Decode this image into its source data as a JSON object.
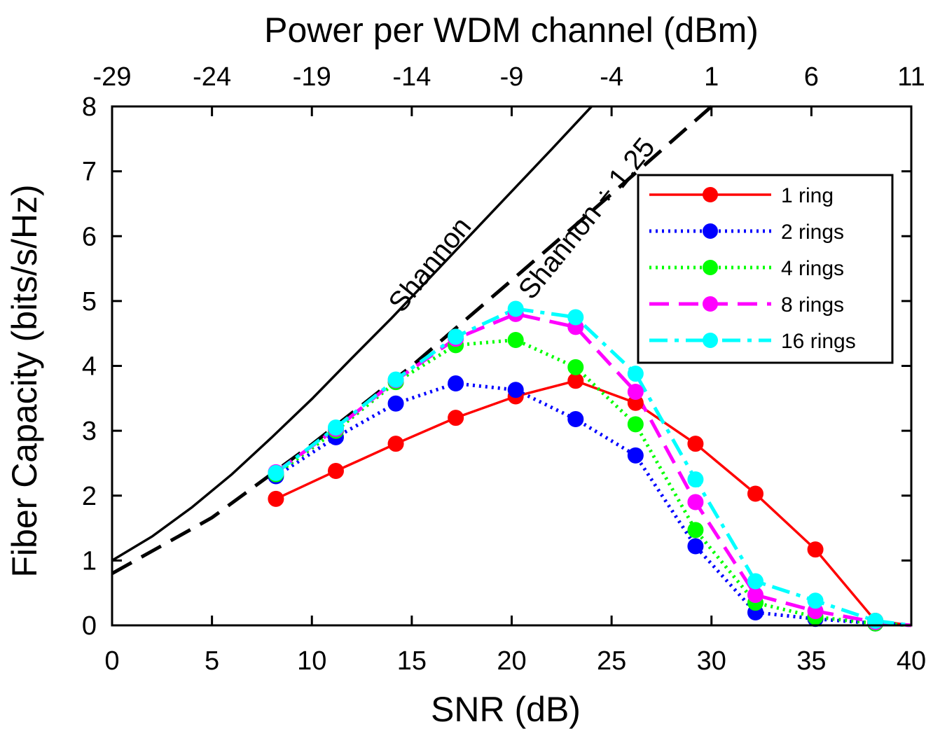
{
  "chart_data": {
    "type": "line",
    "xlabel": "SNR (dB)",
    "ylabel": "Fiber Capacity (bits/s/Hz)",
    "x2label": "Power per WDM channel (dBm)",
    "xlim": [
      0,
      40
    ],
    "ylim": [
      0,
      8
    ],
    "x_ticks": [
      0,
      5,
      10,
      15,
      20,
      25,
      30,
      35,
      40
    ],
    "y_ticks": [
      0,
      1,
      2,
      3,
      4,
      5,
      6,
      7,
      8
    ],
    "x2_ticks": [
      -29,
      -24,
      -19,
      -14,
      -9,
      -4,
      1,
      6,
      11
    ],
    "grid": false,
    "legend_position": "top-right",
    "annotations": [
      {
        "text": "Shannon",
        "x": 14.5,
        "y": 4.8
      },
      {
        "text": "Shannon ÷ 1.25",
        "x": 21.0,
        "y": 5.0
      }
    ],
    "reference_curves": [
      {
        "label": "Shannon",
        "style": "solid",
        "color": "#000000",
        "x": [
          0,
          2,
          4,
          6,
          8,
          10,
          12,
          14,
          16,
          18,
          20,
          22,
          24
        ],
        "y": [
          1.0,
          1.37,
          1.82,
          2.33,
          2.9,
          3.49,
          4.12,
          4.74,
          5.39,
          6.04,
          6.69,
          7.34,
          8.0
        ]
      },
      {
        "label": "Shannon ÷ 1.25",
        "style": "dashed",
        "color": "#000000",
        "x": [
          0,
          5,
          10,
          15,
          20,
          25,
          30
        ],
        "y": [
          0.8,
          1.66,
          2.79,
          4.0,
          5.32,
          6.65,
          8.0
        ]
      }
    ],
    "series": [
      {
        "name": "1 ring",
        "color": "#ff0000",
        "dash": "solid",
        "x": [
          8.2,
          11.2,
          14.2,
          17.2,
          20.2,
          23.2,
          26.2,
          29.2,
          32.2,
          35.2,
          38.2,
          40.0
        ],
        "y": [
          1.95,
          2.38,
          2.8,
          3.2,
          3.53,
          3.77,
          3.43,
          2.8,
          2.03,
          1.17,
          0.07,
          0.0
        ]
      },
      {
        "name": "2 rings",
        "color": "#0000ff",
        "dash": "dotted",
        "x": [
          8.2,
          11.2,
          14.2,
          17.2,
          20.2,
          23.2,
          26.2,
          29.2,
          32.2,
          35.2,
          38.2,
          40.0
        ],
        "y": [
          2.3,
          2.9,
          3.42,
          3.73,
          3.63,
          3.18,
          2.62,
          1.22,
          0.2,
          0.1,
          0.03,
          0.0
        ]
      },
      {
        "name": "4 rings",
        "color": "#00ff00",
        "dash": "dotted",
        "x": [
          8.2,
          11.2,
          14.2,
          17.2,
          20.2,
          23.2,
          26.2,
          29.2,
          32.2,
          35.2,
          38.2,
          40.0
        ],
        "y": [
          2.33,
          3.0,
          3.75,
          4.32,
          4.4,
          3.98,
          3.1,
          1.47,
          0.35,
          0.13,
          0.03,
          0.0
        ]
      },
      {
        "name": "8 rings",
        "color": "#ff00ff",
        "dash": "dashed",
        "x": [
          8.2,
          11.2,
          14.2,
          17.2,
          20.2,
          23.2,
          26.2,
          29.2,
          32.2,
          35.2,
          38.2,
          40.0
        ],
        "y": [
          2.36,
          3.03,
          3.78,
          4.42,
          4.8,
          4.6,
          3.6,
          1.9,
          0.47,
          0.22,
          0.05,
          0.0
        ]
      },
      {
        "name": "16 rings",
        "color": "#00ffff",
        "dash": "dashdot",
        "x": [
          8.2,
          11.2,
          14.2,
          17.2,
          20.2,
          23.2,
          26.2,
          29.2,
          32.2,
          35.2,
          38.2,
          40.0
        ],
        "y": [
          2.35,
          3.05,
          3.79,
          4.45,
          4.88,
          4.75,
          3.88,
          2.25,
          0.68,
          0.38,
          0.07,
          0.0
        ]
      }
    ]
  }
}
